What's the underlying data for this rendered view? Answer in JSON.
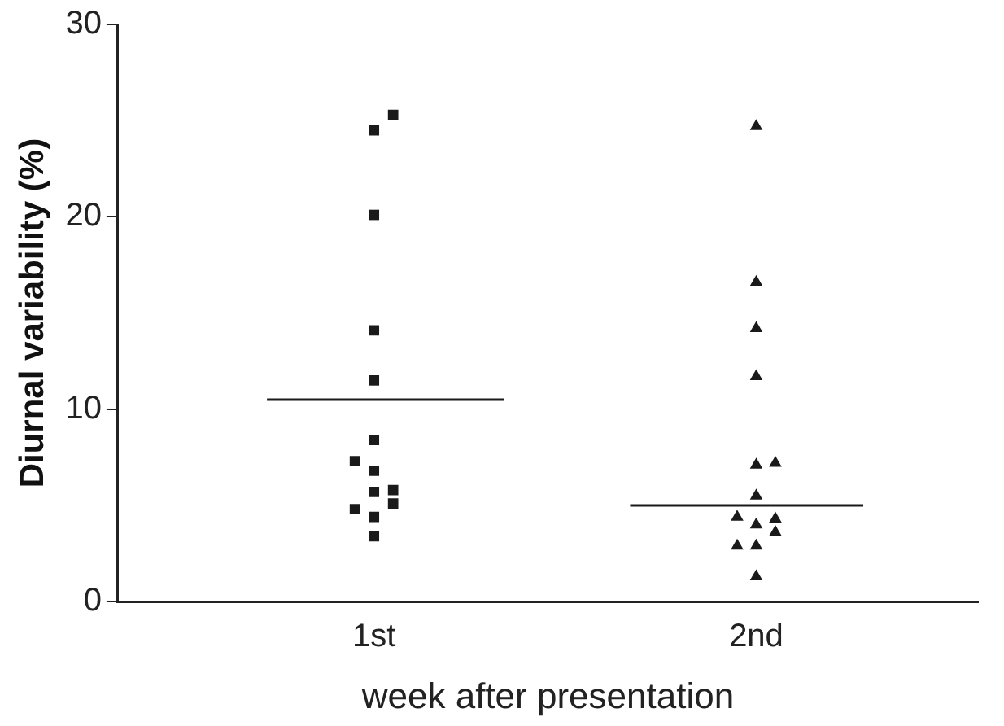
{
  "chart_data": {
    "type": "scatter",
    "xlabel": "week after presentation",
    "ylabel": "Diurnal variability (%)",
    "xlim": [
      0.33,
      2.58
    ],
    "xticks": [
      {
        "value": 1,
        "label": "1st"
      },
      {
        "value": 2,
        "label": "2nd"
      }
    ],
    "ylim": [
      0,
      30
    ],
    "yticks": [
      0,
      10,
      20,
      30
    ],
    "grid": false,
    "legend": false,
    "series": [
      {
        "marker": "square",
        "color": "#1a1a1a",
        "x": [
          1.05,
          1,
          1,
          1,
          1,
          1,
          0.95,
          1,
          1,
          1.05,
          1.05,
          0.95,
          1,
          1
        ],
        "values": [
          25.3,
          24.5,
          20.1,
          14.1,
          11.5,
          8.4,
          7.3,
          6.8,
          5.7,
          5.8,
          5.1,
          4.8,
          4.4,
          3.4
        ]
      },
      {
        "marker": "triangle",
        "color": "#1a1a1a",
        "x": [
          2,
          2,
          2,
          2,
          2,
          2.05,
          2,
          1.95,
          2.05,
          2,
          2.05,
          1.95,
          2,
          2
        ],
        "values": [
          24.7,
          16.6,
          14.2,
          11.7,
          7.1,
          7.2,
          5.5,
          4.4,
          4.3,
          4.0,
          3.6,
          2.9,
          2.9,
          1.3
        ]
      },
      {
        "type": "line",
        "marker": "none",
        "color": "#1a1a1a",
        "x": [
          0.72,
          1.34
        ],
        "values": [
          10.5,
          10.5
        ]
      },
      {
        "type": "line",
        "marker": "none",
        "color": "#1a1a1a",
        "x": [
          1.67,
          2.28
        ],
        "values": [
          5.0,
          5.0
        ]
      }
    ]
  }
}
